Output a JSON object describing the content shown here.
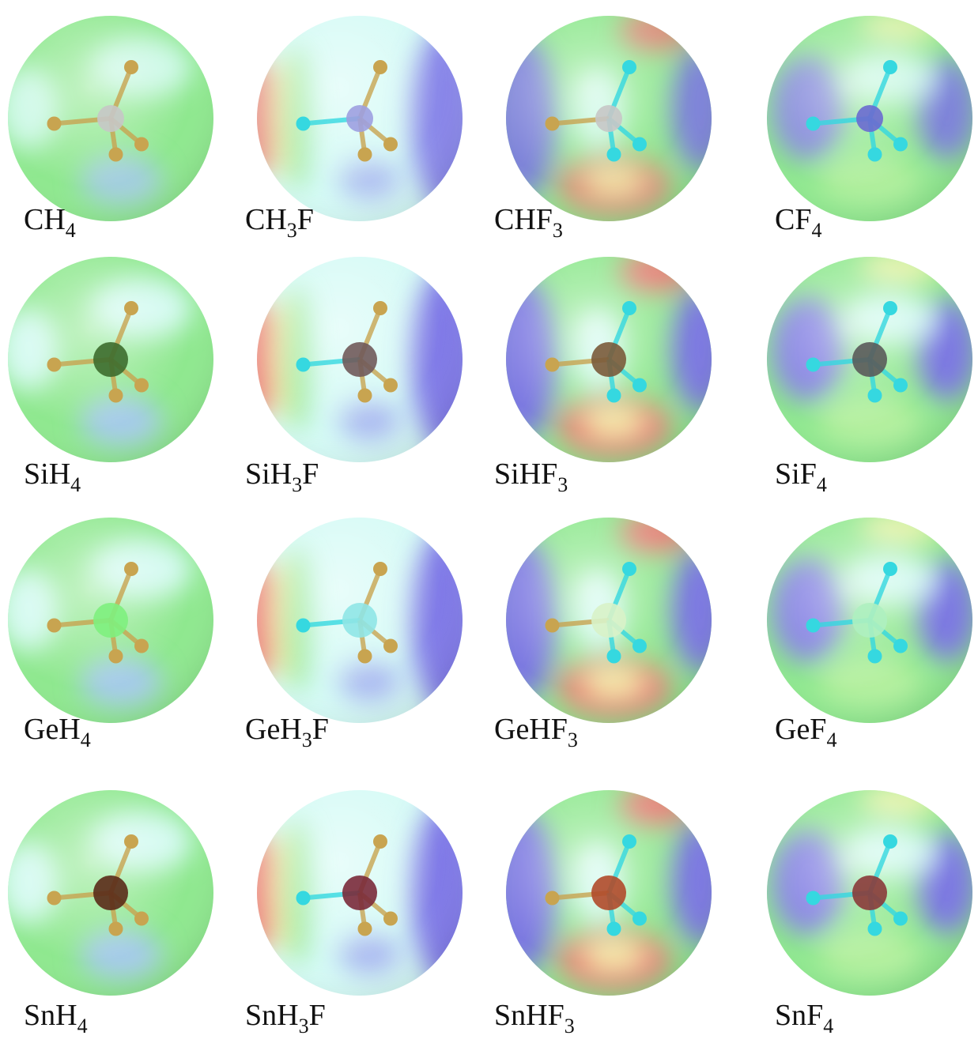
{
  "molecules": [
    {
      "label_parts": [
        "CH",
        "4"
      ]
    },
    {
      "label_parts": [
        "CH",
        "3",
        "F"
      ]
    },
    {
      "label_parts": [
        "CHF",
        "3"
      ]
    },
    {
      "label_parts": [
        "CF",
        "4"
      ]
    },
    {
      "label_parts": [
        "SiH",
        "4"
      ]
    },
    {
      "label_parts": [
        "SiH",
        "3",
        "F"
      ]
    },
    {
      "label_parts": [
        "SiHF",
        "3"
      ]
    },
    {
      "label_parts": [
        "SiF",
        "4"
      ]
    },
    {
      "label_parts": [
        "GeH",
        "4"
      ]
    },
    {
      "label_parts": [
        "GeH",
        "3",
        "F"
      ]
    },
    {
      "label_parts": [
        "GeHF",
        "3"
      ]
    },
    {
      "label_parts": [
        "GeF",
        "4"
      ]
    },
    {
      "label_parts": [
        "SnH",
        "4"
      ]
    },
    {
      "label_parts": [
        "SnH",
        "3",
        "F"
      ]
    },
    {
      "label_parts": [
        "SnHF",
        "3"
      ]
    },
    {
      "label_parts": [
        "SnF",
        "4"
      ]
    }
  ]
}
